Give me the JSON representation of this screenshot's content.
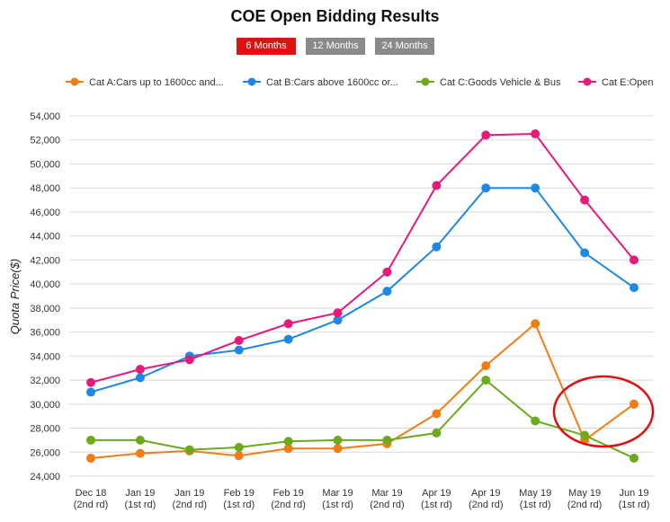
{
  "header": {
    "title": "COE Open Bidding Results",
    "range_tabs": [
      {
        "label": "6 Months",
        "active": true
      },
      {
        "label": "12 Months",
        "active": false
      },
      {
        "label": "24 Months",
        "active": false
      }
    ]
  },
  "colors": {
    "active_tab": "#dd1111",
    "inactive_tab": "#8a8a8a",
    "grid": "#d8d8d8",
    "highlight_circle": "#dd1111"
  },
  "chart_data": {
    "type": "line",
    "title": "COE Open Bidding Results",
    "xlabel": "",
    "ylabel": "Quota Price($)",
    "ylim": [
      24000,
      54000
    ],
    "ytick_step": 2000,
    "grid": true,
    "legend_position": "top",
    "categories": [
      [
        "Dec 18",
        "(2nd rd)"
      ],
      [
        "Jan 19",
        "(1st rd)"
      ],
      [
        "Jan 19",
        "(2nd rd)"
      ],
      [
        "Feb 19",
        "(1st rd)"
      ],
      [
        "Feb 19",
        "(2nd rd)"
      ],
      [
        "Mar 19",
        "(1st rd)"
      ],
      [
        "Mar 19",
        "(2nd rd)"
      ],
      [
        "Apr 19",
        "(1st rd)"
      ],
      [
        "Apr 19",
        "(2nd rd)"
      ],
      [
        "May 19",
        "(1st rd)"
      ],
      [
        "May 19",
        "(2nd rd)"
      ],
      [
        "Jun 19",
        "(1st rd)"
      ]
    ],
    "series": [
      {
        "name": "Cat A:Cars up to 1600cc and...",
        "color": "#f07d14",
        "values": [
          25500,
          25900,
          26100,
          25700,
          26300,
          26300,
          26700,
          29200,
          33200,
          36700,
          27000,
          30000
        ]
      },
      {
        "name": "Cat B:Cars above 1600cc or...",
        "color": "#1e88e5",
        "values": [
          31000,
          32200,
          34000,
          34500,
          35400,
          37000,
          39400,
          43100,
          48000,
          48000,
          42600,
          39700
        ]
      },
      {
        "name": "Cat C:Goods Vehicle & Bus",
        "color": "#6aaa1c",
        "values": [
          27000,
          27000,
          26200,
          26400,
          26900,
          27000,
          27000,
          27600,
          32000,
          28600,
          27400,
          25500
        ]
      },
      {
        "name": "Cat E:Open",
        "color": "#e61a7a",
        "values": [
          31800,
          32900,
          33700,
          35300,
          36700,
          37600,
          41000,
          48200,
          52400,
          52500,
          47000,
          42000
        ]
      }
    ],
    "annotation": {
      "type": "circle",
      "around_categories": [
        "May 19 (2nd rd)",
        "Jun 19 (1st rd)"
      ]
    }
  }
}
